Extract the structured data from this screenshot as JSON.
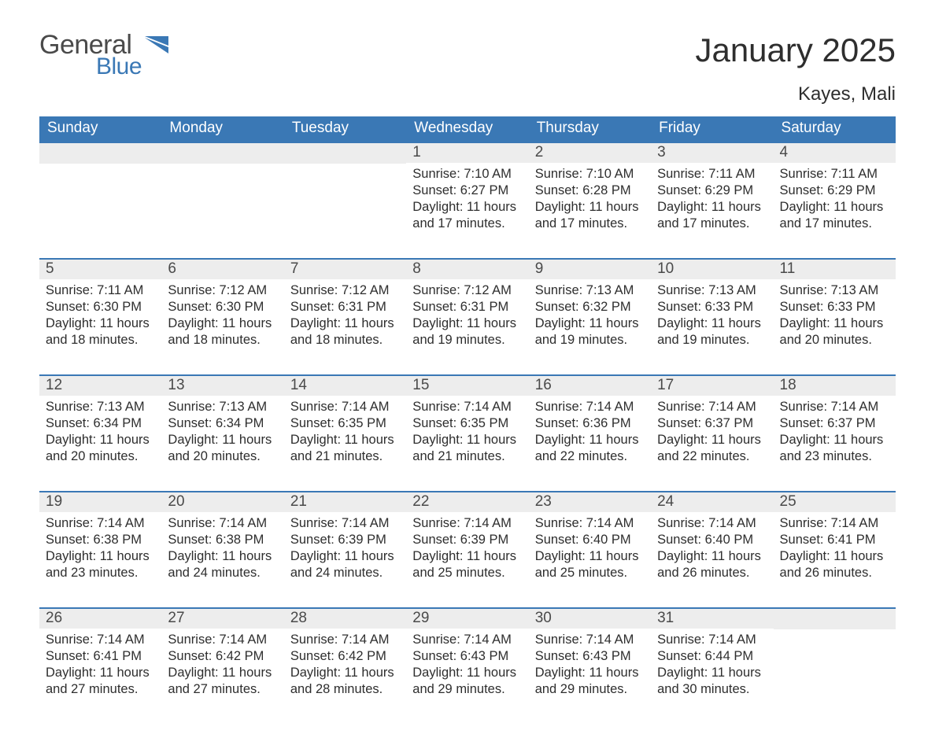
{
  "brand": {
    "word1": "General",
    "word2": "Blue",
    "flag_color": "#3a78b5",
    "text_gray": "#4a4a4a"
  },
  "title": {
    "month": "January 2025",
    "location": "Kayes, Mali"
  },
  "colors": {
    "header_bg": "#3a78b5",
    "header_text": "#ffffff",
    "daynum_bg": "#ededed",
    "daynum_text": "#4a4a4a",
    "body_text": "#2e2e2e",
    "row_divider": "#3a78b5",
    "page_bg": "#ffffff"
  },
  "typography": {
    "month_fontsize": 42,
    "location_fontsize": 24,
    "header_fontsize": 19,
    "daynum_fontsize": 19,
    "body_fontsize": 16.5
  },
  "calendar": {
    "type": "table",
    "columns": [
      "Sunday",
      "Monday",
      "Tuesday",
      "Wednesday",
      "Thursday",
      "Friday",
      "Saturday"
    ],
    "weeks": [
      [
        null,
        null,
        null,
        {
          "n": "1",
          "sunrise": "Sunrise: 7:10 AM",
          "sunset": "Sunset: 6:27 PM",
          "daylight": "Daylight: 11 hours and 17 minutes."
        },
        {
          "n": "2",
          "sunrise": "Sunrise: 7:10 AM",
          "sunset": "Sunset: 6:28 PM",
          "daylight": "Daylight: 11 hours and 17 minutes."
        },
        {
          "n": "3",
          "sunrise": "Sunrise: 7:11 AM",
          "sunset": "Sunset: 6:29 PM",
          "daylight": "Daylight: 11 hours and 17 minutes."
        },
        {
          "n": "4",
          "sunrise": "Sunrise: 7:11 AM",
          "sunset": "Sunset: 6:29 PM",
          "daylight": "Daylight: 11 hours and 17 minutes."
        }
      ],
      [
        {
          "n": "5",
          "sunrise": "Sunrise: 7:11 AM",
          "sunset": "Sunset: 6:30 PM",
          "daylight": "Daylight: 11 hours and 18 minutes."
        },
        {
          "n": "6",
          "sunrise": "Sunrise: 7:12 AM",
          "sunset": "Sunset: 6:30 PM",
          "daylight": "Daylight: 11 hours and 18 minutes."
        },
        {
          "n": "7",
          "sunrise": "Sunrise: 7:12 AM",
          "sunset": "Sunset: 6:31 PM",
          "daylight": "Daylight: 11 hours and 18 minutes."
        },
        {
          "n": "8",
          "sunrise": "Sunrise: 7:12 AM",
          "sunset": "Sunset: 6:31 PM",
          "daylight": "Daylight: 11 hours and 19 minutes."
        },
        {
          "n": "9",
          "sunrise": "Sunrise: 7:13 AM",
          "sunset": "Sunset: 6:32 PM",
          "daylight": "Daylight: 11 hours and 19 minutes."
        },
        {
          "n": "10",
          "sunrise": "Sunrise: 7:13 AM",
          "sunset": "Sunset: 6:33 PM",
          "daylight": "Daylight: 11 hours and 19 minutes."
        },
        {
          "n": "11",
          "sunrise": "Sunrise: 7:13 AM",
          "sunset": "Sunset: 6:33 PM",
          "daylight": "Daylight: 11 hours and 20 minutes."
        }
      ],
      [
        {
          "n": "12",
          "sunrise": "Sunrise: 7:13 AM",
          "sunset": "Sunset: 6:34 PM",
          "daylight": "Daylight: 11 hours and 20 minutes."
        },
        {
          "n": "13",
          "sunrise": "Sunrise: 7:13 AM",
          "sunset": "Sunset: 6:34 PM",
          "daylight": "Daylight: 11 hours and 20 minutes."
        },
        {
          "n": "14",
          "sunrise": "Sunrise: 7:14 AM",
          "sunset": "Sunset: 6:35 PM",
          "daylight": "Daylight: 11 hours and 21 minutes."
        },
        {
          "n": "15",
          "sunrise": "Sunrise: 7:14 AM",
          "sunset": "Sunset: 6:35 PM",
          "daylight": "Daylight: 11 hours and 21 minutes."
        },
        {
          "n": "16",
          "sunrise": "Sunrise: 7:14 AM",
          "sunset": "Sunset: 6:36 PM",
          "daylight": "Daylight: 11 hours and 22 minutes."
        },
        {
          "n": "17",
          "sunrise": "Sunrise: 7:14 AM",
          "sunset": "Sunset: 6:37 PM",
          "daylight": "Daylight: 11 hours and 22 minutes."
        },
        {
          "n": "18",
          "sunrise": "Sunrise: 7:14 AM",
          "sunset": "Sunset: 6:37 PM",
          "daylight": "Daylight: 11 hours and 23 minutes."
        }
      ],
      [
        {
          "n": "19",
          "sunrise": "Sunrise: 7:14 AM",
          "sunset": "Sunset: 6:38 PM",
          "daylight": "Daylight: 11 hours and 23 minutes."
        },
        {
          "n": "20",
          "sunrise": "Sunrise: 7:14 AM",
          "sunset": "Sunset: 6:38 PM",
          "daylight": "Daylight: 11 hours and 24 minutes."
        },
        {
          "n": "21",
          "sunrise": "Sunrise: 7:14 AM",
          "sunset": "Sunset: 6:39 PM",
          "daylight": "Daylight: 11 hours and 24 minutes."
        },
        {
          "n": "22",
          "sunrise": "Sunrise: 7:14 AM",
          "sunset": "Sunset: 6:39 PM",
          "daylight": "Daylight: 11 hours and 25 minutes."
        },
        {
          "n": "23",
          "sunrise": "Sunrise: 7:14 AM",
          "sunset": "Sunset: 6:40 PM",
          "daylight": "Daylight: 11 hours and 25 minutes."
        },
        {
          "n": "24",
          "sunrise": "Sunrise: 7:14 AM",
          "sunset": "Sunset: 6:40 PM",
          "daylight": "Daylight: 11 hours and 26 minutes."
        },
        {
          "n": "25",
          "sunrise": "Sunrise: 7:14 AM",
          "sunset": "Sunset: 6:41 PM",
          "daylight": "Daylight: 11 hours and 26 minutes."
        }
      ],
      [
        {
          "n": "26",
          "sunrise": "Sunrise: 7:14 AM",
          "sunset": "Sunset: 6:41 PM",
          "daylight": "Daylight: 11 hours and 27 minutes."
        },
        {
          "n": "27",
          "sunrise": "Sunrise: 7:14 AM",
          "sunset": "Sunset: 6:42 PM",
          "daylight": "Daylight: 11 hours and 27 minutes."
        },
        {
          "n": "28",
          "sunrise": "Sunrise: 7:14 AM",
          "sunset": "Sunset: 6:42 PM",
          "daylight": "Daylight: 11 hours and 28 minutes."
        },
        {
          "n": "29",
          "sunrise": "Sunrise: 7:14 AM",
          "sunset": "Sunset: 6:43 PM",
          "daylight": "Daylight: 11 hours and 29 minutes."
        },
        {
          "n": "30",
          "sunrise": "Sunrise: 7:14 AM",
          "sunset": "Sunset: 6:43 PM",
          "daylight": "Daylight: 11 hours and 29 minutes."
        },
        {
          "n": "31",
          "sunrise": "Sunrise: 7:14 AM",
          "sunset": "Sunset: 6:44 PM",
          "daylight": "Daylight: 11 hours and 30 minutes."
        },
        null
      ]
    ]
  }
}
